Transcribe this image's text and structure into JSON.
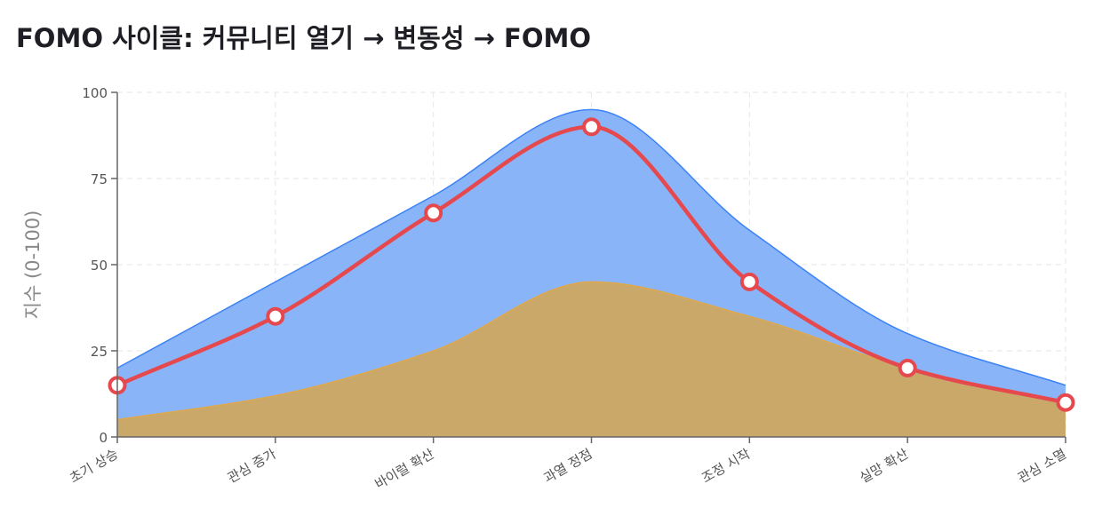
{
  "title": "FOMO 사이클: 커뮤니티 열기 → 변동성 → FOMO",
  "chart_data": {
    "type": "area",
    "title": "FOMO 사이클: 커뮤니티 열기 → 변동성 → FOMO",
    "xlabel": "",
    "ylabel": "지수 (0-100)",
    "ylim": [
      0,
      100
    ],
    "yticks": [
      0,
      25,
      50,
      75,
      100
    ],
    "grid": true,
    "legend": "none",
    "categories": [
      "초기 상승",
      "관심 증가",
      "바이럴 확산",
      "과열 정점",
      "조정 시작",
      "실망 확산",
      "관심 소멸"
    ],
    "series": [
      {
        "type": "area",
        "color": "#8ab4f8",
        "stroke": "#3b82f6",
        "values": [
          20,
          45,
          70,
          95,
          60,
          30,
          15
        ]
      },
      {
        "type": "area",
        "color": "#c9a86a",
        "stroke": "#e0a84a",
        "values": [
          5,
          12,
          25,
          45,
          35,
          20,
          10
        ]
      },
      {
        "type": "line",
        "color": "#e5484d",
        "markers": true,
        "values": [
          15,
          35,
          65,
          90,
          45,
          20,
          10
        ]
      }
    ]
  }
}
